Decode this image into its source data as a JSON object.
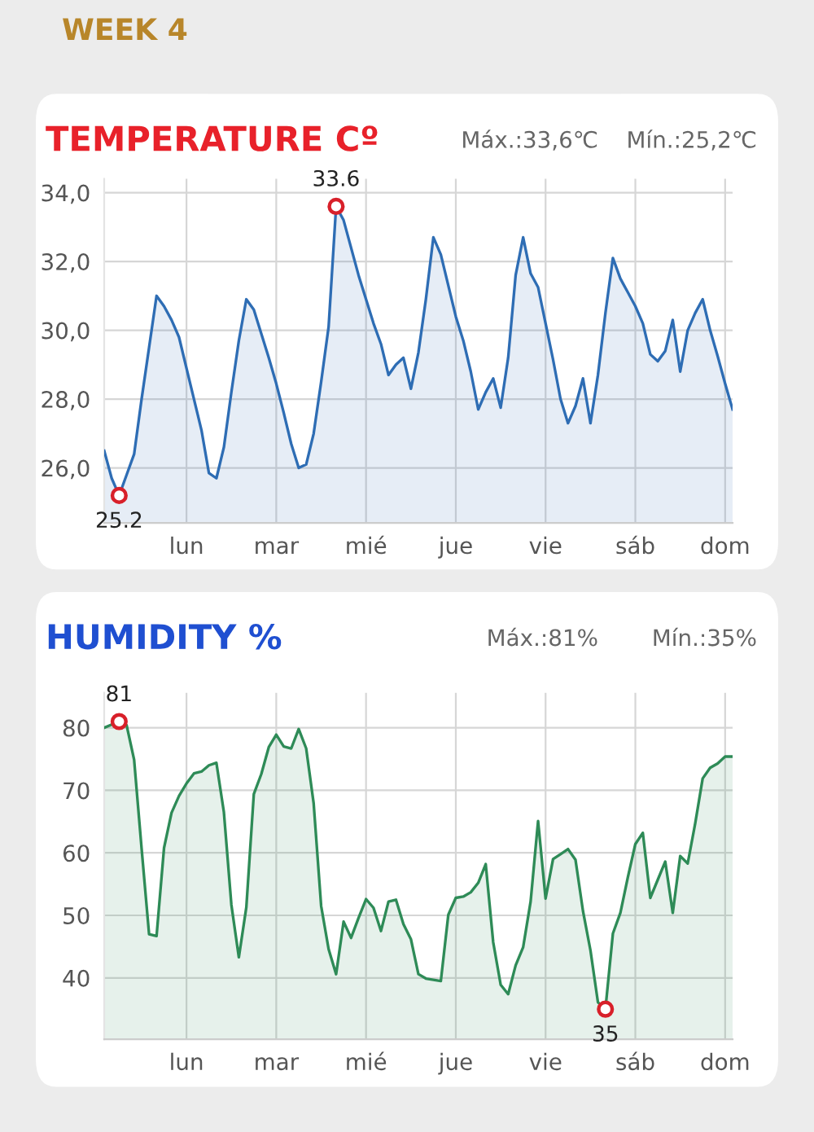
{
  "chart_data": [
    {
      "type": "area",
      "title": "TEMPERATURE Cº",
      "annotations": [
        "WEEK 4",
        "Máx.:33,6℃",
        "Mín.:25,2℃",
        {
          "text": "33.6",
          "y": 33.6
        },
        {
          "text": "25.2",
          "y": 25.2
        }
      ],
      "categories": [
        null,
        null,
        null,
        null,
        null,
        null,
        null,
        null,
        null,
        null,
        null,
        "lun",
        null,
        null,
        null,
        null,
        null,
        null,
        null,
        null,
        null,
        null,
        null,
        "mar",
        null,
        null,
        null,
        null,
        null,
        null,
        null,
        null,
        null,
        null,
        null,
        "mié",
        null,
        null,
        null,
        null,
        null,
        null,
        null,
        null,
        null,
        null,
        null,
        "jue",
        null,
        null,
        null,
        null,
        null,
        null,
        null,
        null,
        null,
        null,
        null,
        "vie",
        null,
        null,
        null,
        null,
        null,
        null,
        null,
        null,
        null,
        null,
        null,
        "sáb",
        null,
        null,
        null,
        null,
        null,
        null,
        null,
        null,
        null,
        null,
        null,
        "dom",
        null
      ],
      "series": [
        {
          "color": "#2e6db4",
          "values": [
            26.5,
            25.7,
            25.2,
            25.8,
            26.4,
            28.0,
            29.5,
            31.0,
            30.7,
            30.3,
            29.8,
            28.9,
            28.0,
            27.1,
            25.85,
            25.7,
            26.6,
            28.2,
            29.7,
            30.9,
            30.6,
            29.9,
            29.2,
            28.45,
            27.6,
            26.7,
            26.0,
            26.1,
            27.0,
            28.5,
            30.1,
            33.6,
            33.2,
            32.4,
            31.6,
            30.9,
            30.2,
            29.6,
            28.7,
            29.0,
            29.2,
            28.3,
            29.35,
            30.9,
            32.7,
            32.2,
            31.3,
            30.4,
            29.7,
            28.8,
            27.7,
            28.2,
            28.6,
            27.75,
            29.2,
            31.6,
            32.7,
            31.65,
            31.25,
            30.2,
            29.15,
            28.0,
            27.3,
            27.8,
            28.6,
            27.3,
            28.7,
            30.5,
            32.1,
            31.5,
            31.1,
            30.7,
            30.2,
            29.3,
            29.1,
            29.4,
            30.3,
            28.8,
            30.0,
            30.5,
            30.9,
            30.0,
            29.25,
            28.45,
            27.7
          ]
        }
      ],
      "ylim": [
        24.4,
        34.4
      ],
      "yticks": [
        {
          "value": 26,
          "label": "26,0"
        },
        {
          "value": 28,
          "label": "28,0"
        },
        {
          "value": 30,
          "label": "30,0"
        },
        {
          "value": 32,
          "label": "32,0"
        },
        {
          "value": 34,
          "label": "34,0"
        }
      ],
      "grid": true,
      "marker": "none",
      "line_style": "solid"
    },
    {
      "type": "area",
      "title": "HUMIDITY %",
      "annotations": [
        "Máx.:81%",
        "Mín.:35%",
        {
          "text": "81",
          "y": 81
        },
        {
          "text": "35",
          "y": 35
        }
      ],
      "categories": [
        null,
        null,
        null,
        null,
        null,
        null,
        null,
        null,
        null,
        null,
        null,
        "lun",
        null,
        null,
        null,
        null,
        null,
        null,
        null,
        null,
        null,
        null,
        null,
        "mar",
        null,
        null,
        null,
        null,
        null,
        null,
        null,
        null,
        null,
        null,
        null,
        "mié",
        null,
        null,
        null,
        null,
        null,
        null,
        null,
        null,
        null,
        null,
        null,
        "jue",
        null,
        null,
        null,
        null,
        null,
        null,
        null,
        null,
        null,
        null,
        null,
        "vie",
        null,
        null,
        null,
        null,
        null,
        null,
        null,
        null,
        null,
        null,
        null,
        "sáb",
        null,
        null,
        null,
        null,
        null,
        null,
        null,
        null,
        null,
        null,
        null,
        "dom",
        null
      ],
      "series": [
        {
          "color": "#2e8b57",
          "values": [
            80,
            80.5,
            81,
            80.4,
            74.9,
            60.7,
            47,
            46.7,
            60.8,
            66.4,
            69.1,
            71.1,
            72.7,
            73,
            74,
            74.4,
            66.5,
            51.7,
            43.3,
            51.3,
            69.4,
            72.6,
            76.9,
            78.9,
            77.0,
            76.7,
            79.8,
            76.7,
            67.9,
            51.5,
            44.6,
            40.6,
            49.0,
            46.4,
            49.6,
            52.6,
            51.2,
            47.5,
            52.2,
            52.5,
            48.6,
            46.2,
            40.6,
            39.9,
            39.7,
            39.5,
            50.1,
            52.8,
            53,
            53.7,
            55.2,
            58.2,
            45.7,
            38.9,
            37.4,
            42.0,
            44.9,
            52.2,
            65.1,
            52.7,
            59.0,
            59.8,
            60.6,
            58.9,
            50.7,
            44.4,
            36.1,
            35,
            47.1,
            50.4,
            56.1,
            61.4,
            63.2,
            52.8,
            55.7,
            58.6,
            50.4,
            59.5,
            58.3,
            64.7,
            71.9,
            73.6,
            74.3,
            75.4,
            75.4
          ]
        }
      ],
      "ylim": [
        30.2,
        85.6
      ],
      "yticks": [
        40,
        50,
        60,
        70,
        80
      ],
      "grid": true,
      "marker": "none",
      "line_style": "solid"
    }
  ]
}
